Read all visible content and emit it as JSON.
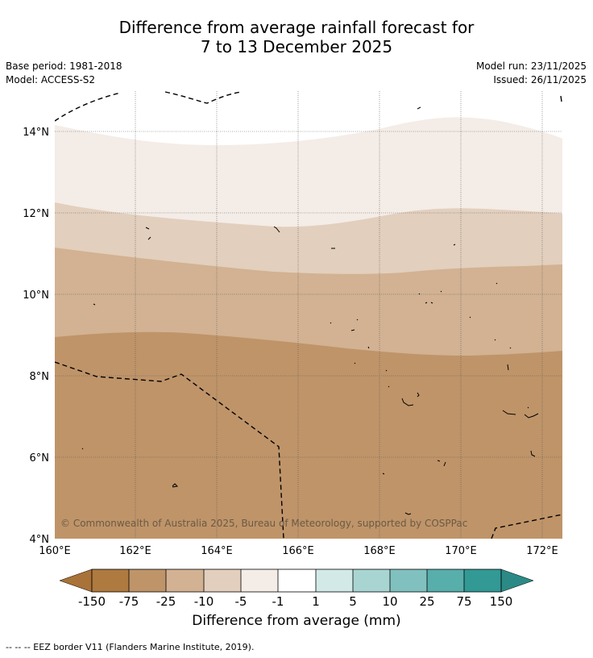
{
  "map": {
    "title_line1": "Difference from average rainfall forecast for",
    "title_line2": "7 to 13 December 2025",
    "base_period": "Base period: 1981-2018",
    "model": "Model: ACCESS-S2",
    "model_run": "Model run: 23/11/2025",
    "issued": "Issued: 26/11/2025",
    "copyright": "© Commonwealth of Australia 2025, Bureau of Meteorology, supported by COSPPac",
    "footer_note": "--  --  -- EEZ border V11 (Flanders Marine Institute, 2019).",
    "lat_labels": [
      "14°N",
      "12°N",
      "10°N",
      "8°N",
      "6°N",
      "4°N"
    ],
    "lon_labels": [
      "160°E",
      "162°E",
      "164°E",
      "166°E",
      "168°E",
      "170°E",
      "172°E"
    ]
  },
  "colorbar": {
    "title": "Difference from average (mm)",
    "tick_labels": [
      "-150",
      "-75",
      "-25",
      "-10",
      "-5",
      "-1",
      "1",
      "5",
      "10",
      "25",
      "75",
      "150"
    ],
    "colors": [
      "#a97238",
      "#af7a40",
      "#bf9469",
      "#d2b292",
      "#e2cfbd",
      "#f4ece7",
      "#ffffff",
      "#d3e9e7",
      "#a8d5d2",
      "#80c1bf",
      "#57aeab",
      "#329995",
      "#2b8a86"
    ]
  },
  "chart_data": {
    "type": "map",
    "lat_range": [
      4,
      15
    ],
    "lon_range": [
      160,
      172.5
    ],
    "bands": [
      {
        "category": "-1 to 1",
        "color": "#ffffff"
      },
      {
        "category": "-5 to -1",
        "color": "#f4ece7"
      },
      {
        "category": "-10 to -5",
        "color": "#e2cfbd"
      },
      {
        "category": "-25 to -10",
        "color": "#d2b292"
      },
      {
        "category": "-75 to -25",
        "color": "#bf9469"
      }
    ]
  }
}
